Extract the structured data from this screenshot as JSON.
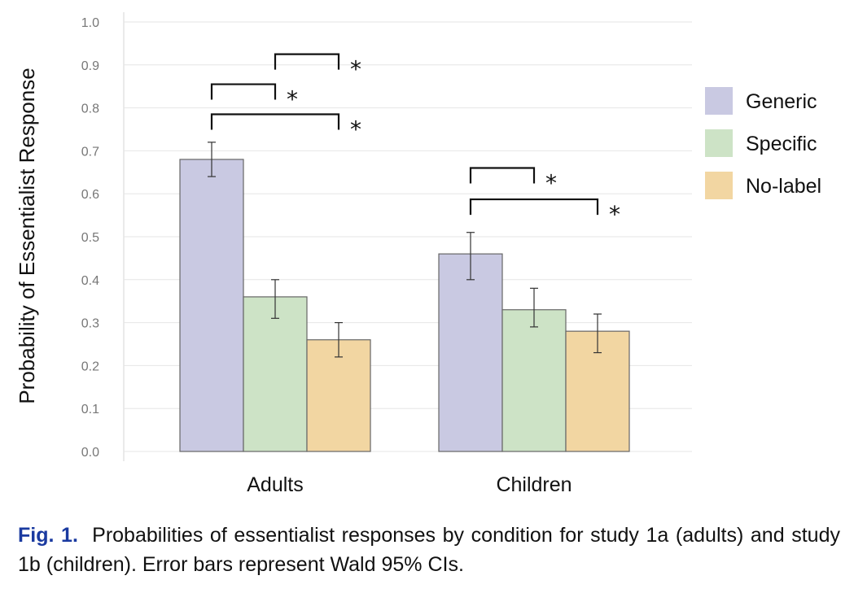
{
  "chart_data": {
    "type": "bar",
    "ylabel": "Probability of Essentialist Response",
    "xlabel": "",
    "ylim": [
      0.0,
      1.0
    ],
    "yticks": [
      "0.0",
      "0.1",
      "0.2",
      "0.3",
      "0.4",
      "0.5",
      "0.6",
      "0.7",
      "0.8",
      "0.9",
      "1.0"
    ],
    "grid": true,
    "legend_position": "right",
    "categories": [
      "Adults",
      "Children"
    ],
    "series": [
      {
        "name": "Generic",
        "color": "#c9c9e2",
        "values": [
          0.68,
          0.46
        ],
        "ci_low": [
          0.64,
          0.4
        ],
        "ci_high": [
          0.72,
          0.51
        ]
      },
      {
        "name": "Specific",
        "color": "#cde3c6",
        "values": [
          0.36,
          0.33
        ],
        "ci_low": [
          0.31,
          0.29
        ],
        "ci_high": [
          0.4,
          0.38
        ]
      },
      {
        "name": "No-label",
        "color": "#f2d6a2",
        "values": [
          0.26,
          0.28
        ],
        "ci_low": [
          0.22,
          0.23
        ],
        "ci_high": [
          0.3,
          0.32
        ]
      }
    ],
    "significance": [
      {
        "group": 0,
        "from": 1,
        "to": 2,
        "y": 0.925,
        "label": "*"
      },
      {
        "group": 0,
        "from": 0,
        "to": 1,
        "y": 0.855,
        "label": "*"
      },
      {
        "group": 0,
        "from": 0,
        "to": 2,
        "y": 0.785,
        "label": "*"
      },
      {
        "group": 1,
        "from": 0,
        "to": 1,
        "y": 0.66,
        "label": "*"
      },
      {
        "group": 1,
        "from": 0,
        "to": 2,
        "y": 0.587,
        "label": "*"
      }
    ]
  },
  "caption": {
    "fig_label": "Fig. 1.",
    "text": "Probabilities of essentialist responses by condition for study 1a (adults) and study 1b (children). Error bars represent Wald 95% CIs."
  }
}
